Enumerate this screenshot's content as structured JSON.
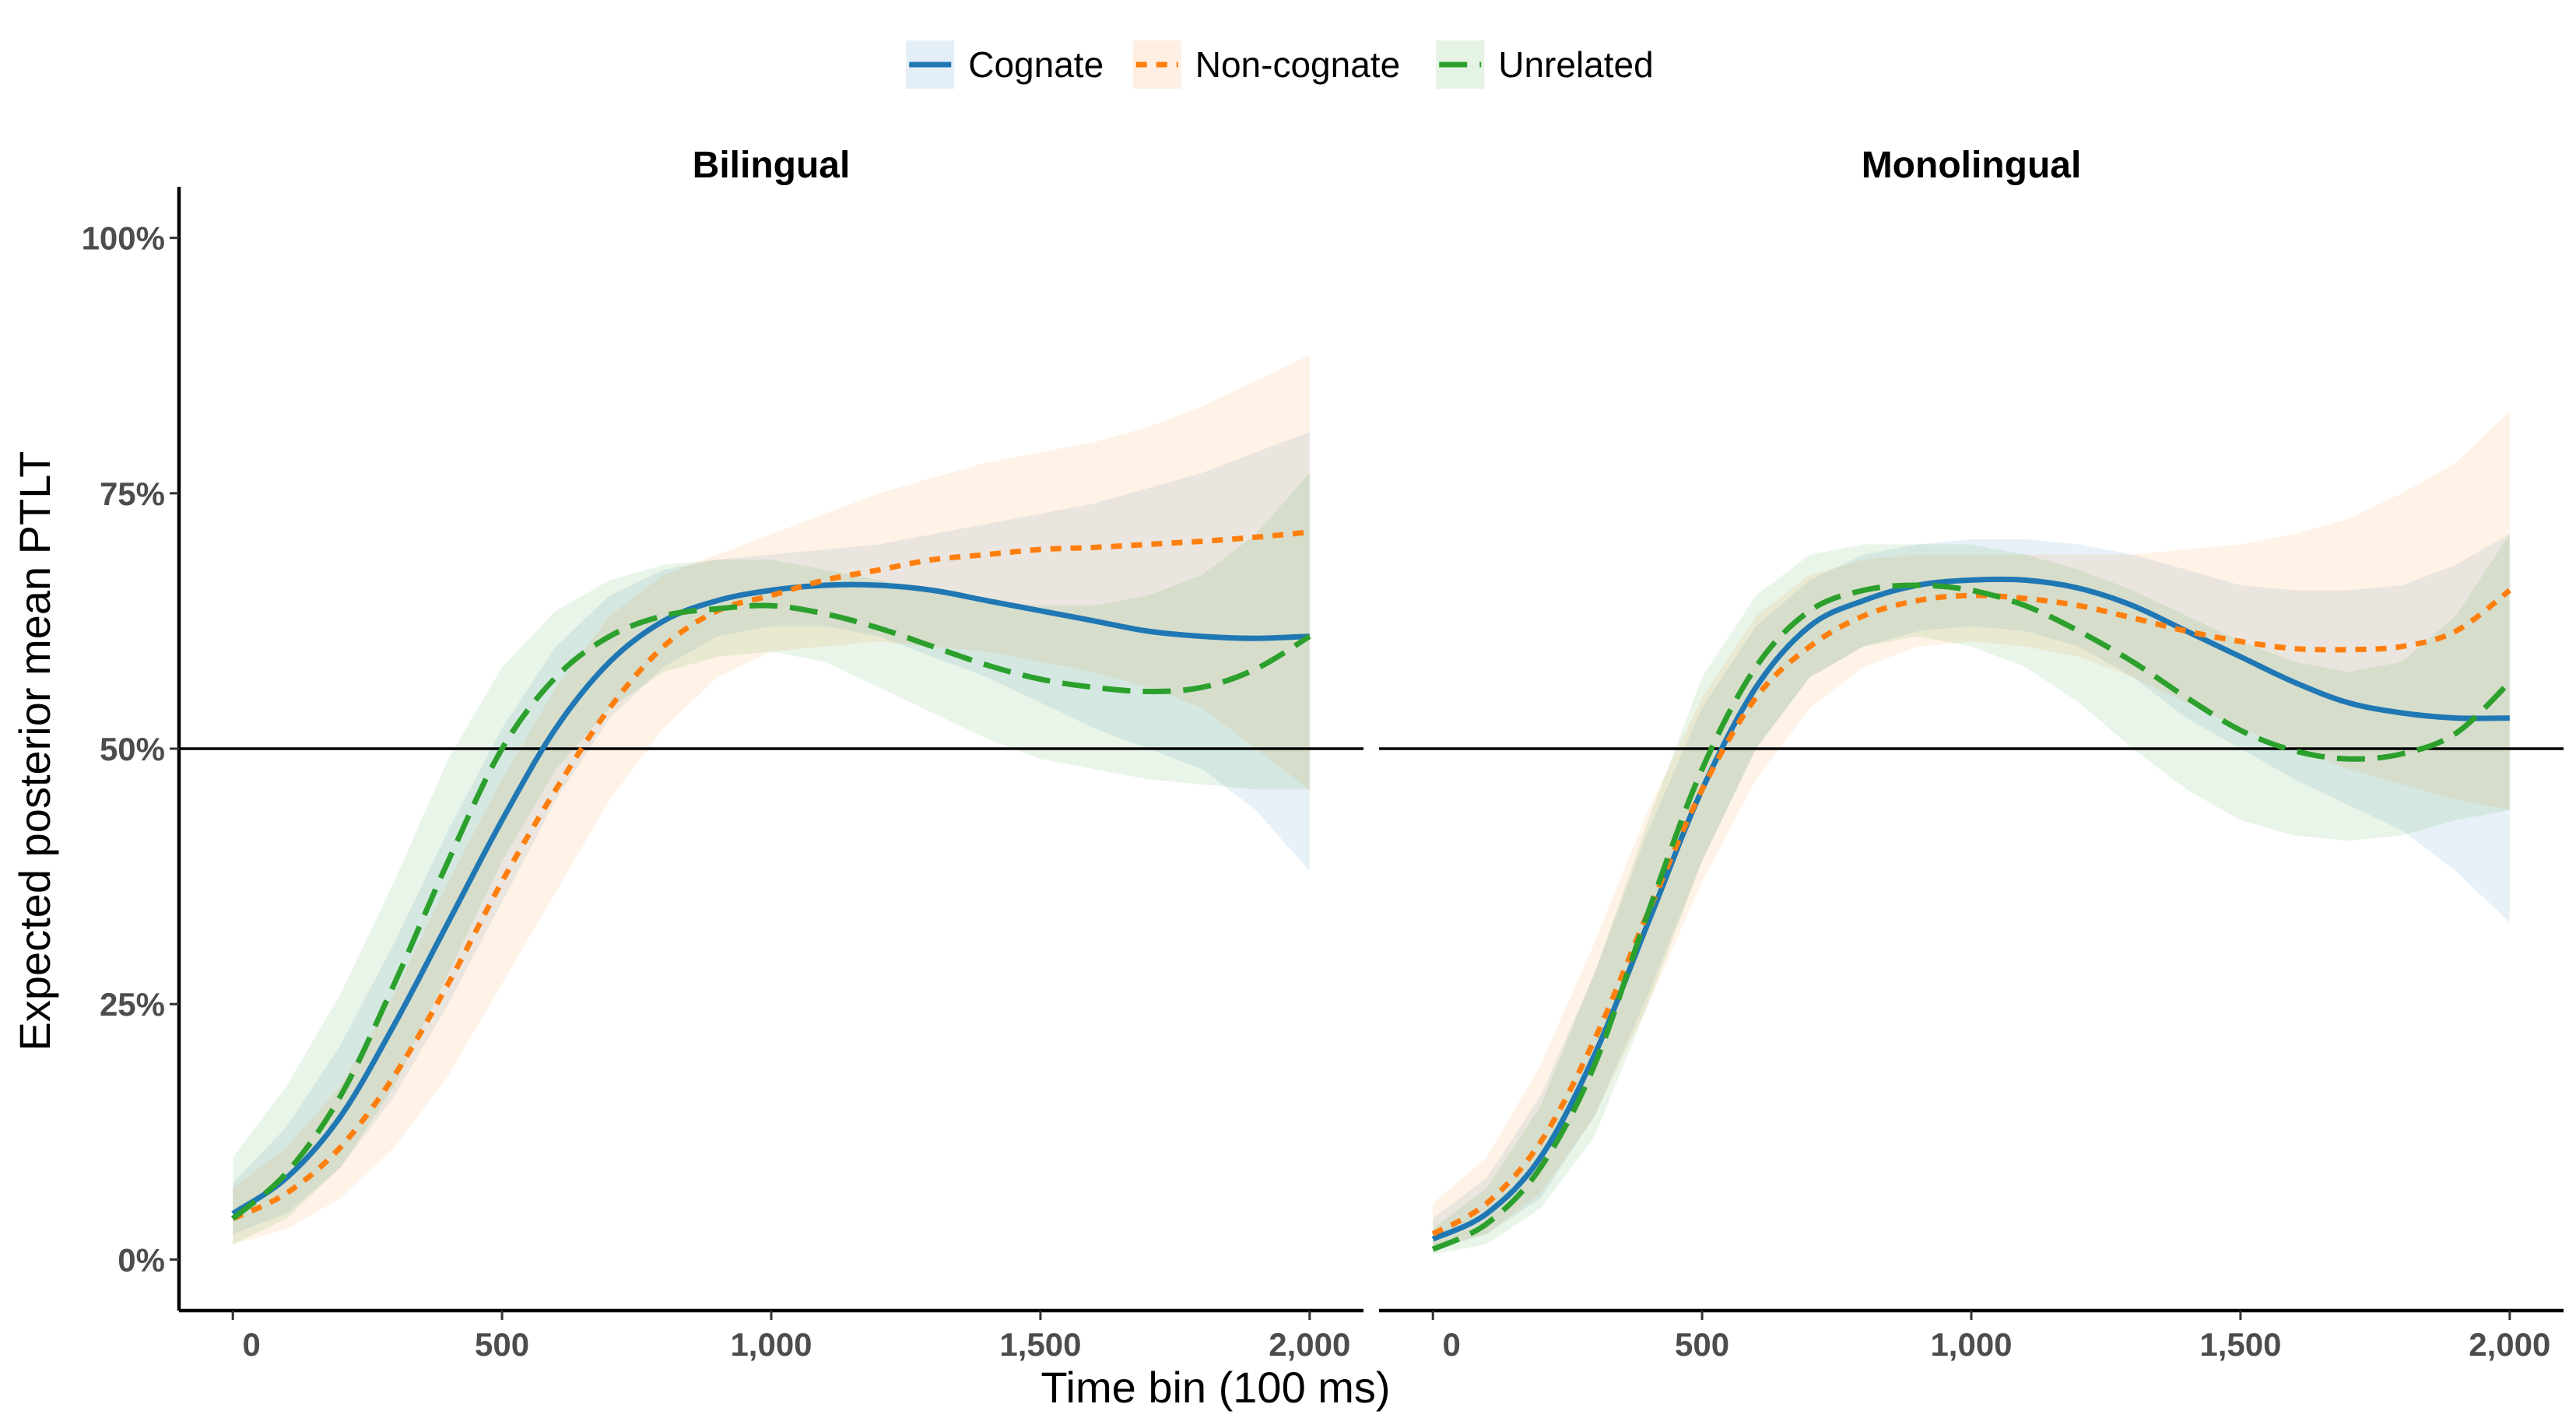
{
  "chart_data": {
    "type": "line",
    "xlabel": "Time bin (100 ms)",
    "ylabel": "Expected posterior mean PTLT",
    "xlim": [
      -100,
      2100
    ],
    "ylim": [
      -0.05,
      1.05
    ],
    "x_ticks": [
      0,
      500,
      1000,
      1500,
      2000
    ],
    "x_tick_labels": [
      "0",
      "500",
      "1,000",
      "1,500",
      "2,000"
    ],
    "y_ticks": [
      0,
      0.25,
      0.5,
      0.75,
      1
    ],
    "y_tick_labels": [
      "0%",
      "25%",
      "50%",
      "75%",
      "100%"
    ],
    "reference_line": 0.5,
    "legend": {
      "position": "top"
    },
    "grid": false,
    "colors": {
      "Cognate": "#1f77b4",
      "Non-cognate": "#ff7f0e",
      "Unrelated": "#2ca02c"
    },
    "series_meta": [
      {
        "name": "Cognate",
        "dash": "solid"
      },
      {
        "name": "Non-cognate",
        "dash": "dotted"
      },
      {
        "name": "Unrelated",
        "dash": "dashed"
      }
    ],
    "x": [
      0,
      100,
      200,
      300,
      400,
      500,
      600,
      700,
      800,
      900,
      1000,
      1100,
      1200,
      1300,
      1400,
      1500,
      1600,
      1700,
      1800,
      1900,
      2000
    ],
    "panels": [
      {
        "title": "Bilingual",
        "series": [
          {
            "name": "Cognate",
            "values": [
              0.045,
              0.08,
              0.14,
              0.23,
              0.33,
              0.43,
              0.52,
              0.585,
              0.625,
              0.645,
              0.655,
              0.66,
              0.66,
              0.655,
              0.645,
              0.635,
              0.625,
              0.615,
              0.61,
              0.608,
              0.61
            ],
            "lower": [
              0.025,
              0.045,
              0.09,
              0.16,
              0.25,
              0.35,
              0.45,
              0.53,
              0.58,
              0.61,
              0.62,
              0.62,
              0.61,
              0.59,
              0.57,
              0.545,
              0.52,
              0.5,
              0.48,
              0.44,
              0.38
            ],
            "upper": [
              0.075,
              0.13,
              0.21,
              0.31,
              0.42,
              0.52,
              0.6,
              0.65,
              0.675,
              0.685,
              0.69,
              0.695,
              0.7,
              0.71,
              0.72,
              0.73,
              0.74,
              0.755,
              0.77,
              0.79,
              0.81
            ]
          },
          {
            "name": "Non-cognate",
            "values": [
              0.04,
              0.065,
              0.11,
              0.18,
              0.27,
              0.37,
              0.46,
              0.54,
              0.6,
              0.635,
              0.65,
              0.665,
              0.675,
              0.685,
              0.69,
              0.695,
              0.697,
              0.7,
              0.703,
              0.707,
              0.712
            ],
            "lower": [
              0.015,
              0.03,
              0.06,
              0.11,
              0.18,
              0.27,
              0.36,
              0.45,
              0.52,
              0.57,
              0.595,
              0.6,
              0.605,
              0.6,
              0.595,
              0.585,
              0.575,
              0.56,
              0.54,
              0.5,
              0.46
            ],
            "upper": [
              0.07,
              0.11,
              0.17,
              0.26,
              0.37,
              0.47,
              0.56,
              0.63,
              0.67,
              0.69,
              0.71,
              0.73,
              0.75,
              0.765,
              0.78,
              0.79,
              0.8,
              0.815,
              0.835,
              0.86,
              0.885
            ]
          },
          {
            "name": "Unrelated",
            "values": [
              0.04,
              0.085,
              0.16,
              0.27,
              0.39,
              0.5,
              0.57,
              0.61,
              0.63,
              0.637,
              0.64,
              0.632,
              0.618,
              0.6,
              0.582,
              0.568,
              0.56,
              0.556,
              0.56,
              0.578,
              0.61
            ],
            "lower": [
              0.015,
              0.04,
              0.09,
              0.17,
              0.28,
              0.39,
              0.48,
              0.54,
              0.575,
              0.59,
              0.595,
              0.585,
              0.56,
              0.535,
              0.51,
              0.49,
              0.48,
              0.47,
              0.465,
              0.46,
              0.46
            ],
            "upper": [
              0.1,
              0.17,
              0.26,
              0.37,
              0.49,
              0.58,
              0.635,
              0.665,
              0.68,
              0.685,
              0.685,
              0.675,
              0.665,
              0.655,
              0.645,
              0.64,
              0.64,
              0.65,
              0.67,
              0.71,
              0.77
            ]
          }
        ]
      },
      {
        "title": "Monolingual",
        "series": [
          {
            "name": "Cognate",
            "values": [
              0.02,
              0.045,
              0.1,
              0.2,
              0.33,
              0.46,
              0.56,
              0.62,
              0.645,
              0.66,
              0.665,
              0.665,
              0.657,
              0.64,
              0.615,
              0.59,
              0.565,
              0.545,
              0.535,
              0.53,
              0.53
            ],
            "lower": [
              0.01,
              0.025,
              0.06,
              0.14,
              0.26,
              0.39,
              0.5,
              0.57,
              0.6,
              0.615,
              0.62,
              0.615,
              0.6,
              0.57,
              0.53,
              0.5,
              0.47,
              0.445,
              0.42,
              0.38,
              0.33
            ],
            "upper": [
              0.04,
              0.08,
              0.16,
              0.28,
              0.42,
              0.54,
              0.62,
              0.665,
              0.69,
              0.7,
              0.705,
              0.705,
              0.7,
              0.69,
              0.675,
              0.66,
              0.655,
              0.655,
              0.66,
              0.68,
              0.71
            ]
          },
          {
            "name": "Non-cognate",
            "values": [
              0.025,
              0.055,
              0.115,
              0.215,
              0.34,
              0.46,
              0.55,
              0.6,
              0.63,
              0.645,
              0.65,
              0.647,
              0.64,
              0.628,
              0.615,
              0.605,
              0.598,
              0.597,
              0.6,
              0.615,
              0.655
            ],
            "lower": [
              0.01,
              0.025,
              0.065,
              0.14,
              0.25,
              0.37,
              0.47,
              0.54,
              0.58,
              0.6,
              0.605,
              0.6,
              0.59,
              0.57,
              0.545,
              0.52,
              0.5,
              0.48,
              0.465,
              0.45,
              0.44
            ],
            "upper": [
              0.055,
              0.1,
              0.19,
              0.31,
              0.44,
              0.55,
              0.63,
              0.67,
              0.685,
              0.69,
              0.69,
              0.69,
              0.69,
              0.69,
              0.695,
              0.7,
              0.71,
              0.725,
              0.75,
              0.78,
              0.83
            ]
          },
          {
            "name": "Unrelated",
            "values": [
              0.01,
              0.035,
              0.09,
              0.19,
              0.34,
              0.48,
              0.58,
              0.635,
              0.655,
              0.66,
              0.655,
              0.64,
              0.615,
              0.585,
              0.55,
              0.518,
              0.498,
              0.49,
              0.495,
              0.515,
              0.565
            ],
            "lower": [
              0.005,
              0.015,
              0.05,
              0.12,
              0.25,
              0.39,
              0.5,
              0.57,
              0.6,
              0.61,
              0.6,
              0.58,
              0.545,
              0.5,
              0.46,
              0.43,
              0.415,
              0.41,
              0.415,
              0.43,
              0.44
            ],
            "upper": [
              0.03,
              0.07,
              0.15,
              0.28,
              0.43,
              0.57,
              0.65,
              0.69,
              0.7,
              0.7,
              0.7,
              0.69,
              0.675,
              0.655,
              0.63,
              0.605,
              0.585,
              0.575,
              0.585,
              0.63,
              0.71
            ]
          }
        ]
      }
    ]
  }
}
